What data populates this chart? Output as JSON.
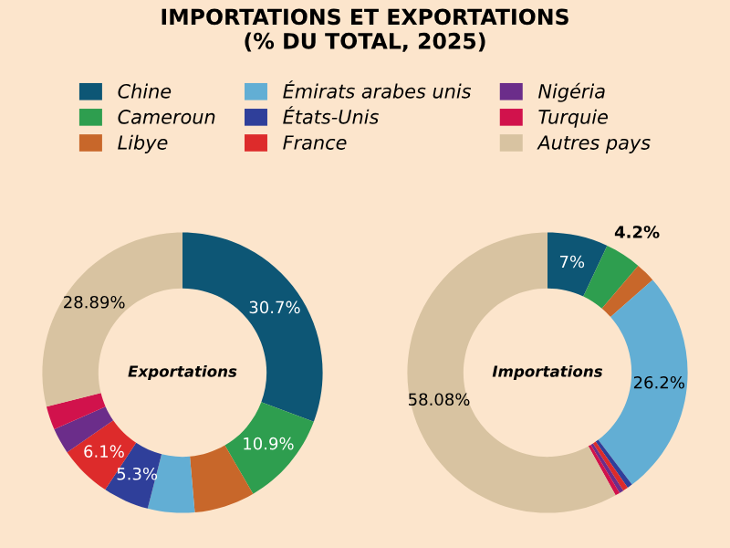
{
  "chart_data": [
    {
      "type": "donut",
      "title": "IMPORTATIONS ET EXPORTATIONS\n(% DU TOTAL, 2025)",
      "annotations": [
        "Exportations"
      ],
      "legend": "top",
      "categories": [
        "Chine",
        "Cameroun",
        "Libye",
        "Émirats arabes unis",
        "États-Unis",
        "France",
        "Nigéria",
        "Turquie",
        "Autres pays"
      ],
      "colors": [
        "#0d5675",
        "#2e9e4f",
        "#c8672a",
        "#62aed4",
        "#2f3f9a",
        "#dd2b2b",
        "#6b2d8a",
        "#d1124c",
        "#d8c3a1"
      ],
      "values": [
        30.7,
        10.9,
        7.0,
        5.4,
        5.3,
        6.1,
        3.0,
        2.71,
        28.89
      ],
      "value_labels": [
        "30.7%",
        "10.9%",
        null,
        null,
        "5.3%",
        "6.1%",
        null,
        null,
        "28.89%"
      ]
    },
    {
      "type": "donut",
      "annotations": [
        "Importations"
      ],
      "categories": [
        null,
        null,
        null,
        null,
        null,
        null,
        null,
        null,
        null
      ],
      "colors": [
        "#0d5675",
        "#2e9e4f",
        "#c8672a",
        "#62aed4",
        "#2f3f9a",
        "#dd2b2b",
        "#6b2d8a",
        "#d1124c",
        "#d8c3a1"
      ],
      "values": [
        7.0,
        4.2,
        2.3,
        26.2,
        0.6,
        0.6,
        0.5,
        0.52,
        58.08
      ],
      "value_labels": [
        "7%",
        "4.2%",
        null,
        "26.2%",
        null,
        null,
        null,
        null,
        "58.08%"
      ]
    }
  ]
}
